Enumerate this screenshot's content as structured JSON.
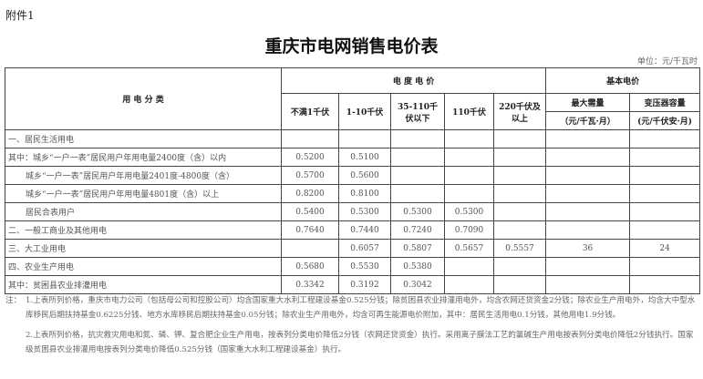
{
  "attachment": "附件1",
  "title": "重庆市电网销售电价表",
  "unit": "单位：元/千瓦时",
  "header": {
    "category": "用 电 分 类",
    "energy_price": "电 度 电 价",
    "basic_price": "基本电价",
    "columns": [
      "不满1千伏",
      "1-10千伏",
      "35-110千伏以下",
      "110千伏",
      "220千伏及以上"
    ],
    "max_demand": "最大需量",
    "max_demand_unit": "（元/千瓦·月）",
    "transformer": "变压器容量",
    "transformer_unit": "(元/千伏安·月)"
  },
  "rows": [
    {
      "label": "一、居民生活用电",
      "v": [
        "",
        "",
        "",
        "",
        "",
        "",
        ""
      ]
    },
    {
      "label": "其中：城乡“一户一表”居民用户年用电量2400度（含）以内",
      "v": [
        "0.5200",
        "0.5100",
        "",
        "",
        "",
        "",
        ""
      ]
    },
    {
      "label": "城乡“一户一表”居民用户年用电量2401度-4800度（含）",
      "indent": true,
      "v": [
        "0.5700",
        "0.5600",
        "",
        "",
        "",
        "",
        ""
      ]
    },
    {
      "label": "城乡“一户一表”居民用户年用电量4801度（含）以上",
      "indent": true,
      "v": [
        "0.8200",
        "0.8100",
        "",
        "",
        "",
        "",
        ""
      ]
    },
    {
      "label": "居民合表用户",
      "indent": true,
      "v": [
        "0.5400",
        "0.5300",
        "0.5300",
        "0.5300",
        "",
        "",
        ""
      ]
    },
    {
      "label": "二、一般工商业及其他用电",
      "v": [
        "0.7640",
        "0.7440",
        "0.7240",
        "0.7090",
        "",
        "",
        ""
      ]
    },
    {
      "label": "三、大工业用电",
      "v": [
        "",
        "0.6057",
        "0.5807",
        "0.5657",
        "0.5557",
        "36",
        "24"
      ]
    },
    {
      "label": "四、农业生产用电",
      "v": [
        "0.5680",
        "0.5530",
        "0.5380",
        "",
        "",
        "",
        ""
      ]
    },
    {
      "label": "其中：贫困县农业排灌用电",
      "v": [
        "0.3342",
        "0.3192",
        "0.3042",
        "",
        "",
        "",
        ""
      ]
    }
  ],
  "notes": {
    "label": "注：",
    "n1": "1.上表所列价格，重庆市电力公司（包括母公司和控股公司）均含国家重大水利工程建设基金0.525分钱；除贫困县农业排灌用电外，均含农网还贷资金2分钱；除农业生产用电外，均含大中型水库移民后期扶持基金0.6225分钱、地方水库移民后期扶持基金0.05分钱；除农业生产用电外，均含可再生能源电价附加，其中：居民生活用电0.1分钱，其他用电1.9分钱。",
    "n2": "2.上表所列价格，抗灾救灾用电和氮、磷、钾、复合肥企业生产用电，按表列分类电价降低2分钱（农网还贷资金）执行。采用离子膜法工艺的氯碱生产用电按表列分类电价降低2分钱执行。国家级贫困县农业排灌用电按表列分类电价降低0.525分钱（国家重大水利工程建设基金）执行。"
  }
}
